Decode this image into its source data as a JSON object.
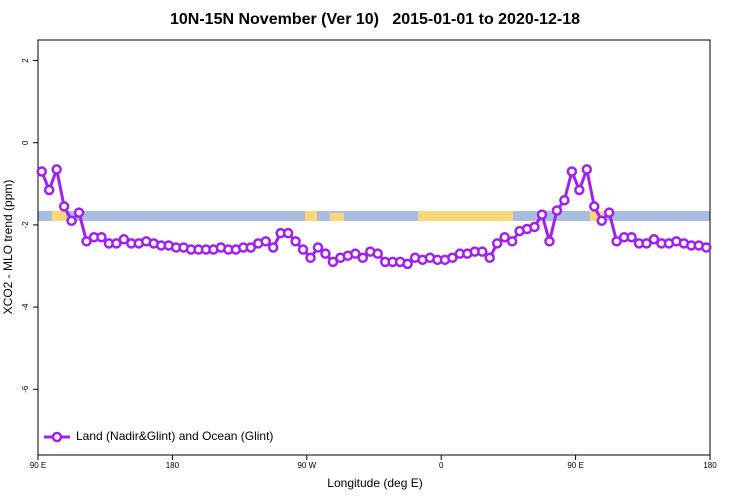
{
  "chart_data": {
    "type": "line",
    "title": "10N-15N November (Ver 10)   2015-01-01 to 2020-12-18",
    "xlabel": "Longitude (deg E)",
    "ylabel": "XCO2 - MLO trend (ppm)",
    "xlim": [
      90,
      540
    ],
    "ylim": [
      -7.6,
      2.5
    ],
    "xticks": [
      {
        "value": 90,
        "label": "90 E"
      },
      {
        "value": 180,
        "label": "180"
      },
      {
        "value": 270,
        "label": "90 W"
      },
      {
        "value": 360,
        "label": "0"
      },
      {
        "value": 450,
        "label": "90 E"
      },
      {
        "value": 540,
        "label": "180"
      }
    ],
    "yticks": [
      2,
      0,
      -2,
      -4,
      -6
    ],
    "legend": "bottomleft",
    "x": [
      92.5,
      97.5,
      102.5,
      107.5,
      112.5,
      117.5,
      122.5,
      127.5,
      132.5,
      137.5,
      142.5,
      147.5,
      152.5,
      157.5,
      162.5,
      167.5,
      172.5,
      177.5,
      182.5,
      187.5,
      192.5,
      197.5,
      202.5,
      207.5,
      212.5,
      217.5,
      222.5,
      227.5,
      232.5,
      237.5,
      242.5,
      247.5,
      252.5,
      257.5,
      262.5,
      267.5,
      272.5,
      277.5,
      282.5,
      287.5,
      292.5,
      297.5,
      302.5,
      307.5,
      312.5,
      317.5,
      322.5,
      327.5,
      332.5,
      337.5,
      342.5,
      347.5,
      352.5,
      357.5,
      362.5,
      367.5,
      372.5,
      377.5,
      382.5,
      387.5,
      392.5,
      397.5,
      402.5,
      407.5,
      412.5,
      417.5,
      422.5,
      427.5,
      432.5,
      437.5,
      442.5,
      447.5,
      452.5,
      457.5,
      462.5,
      467.5,
      472.5,
      477.5,
      482.5,
      487.5,
      492.5,
      497.5,
      502.5,
      507.5,
      512.5,
      517.5,
      522.5,
      527.5,
      532.5,
      537.5
    ],
    "series": [
      {
        "name": "Land (Nadir&Glint) and Ocean (Glint)",
        "color": "#a020f0",
        "values": [
          -0.7,
          -1.15,
          -0.65,
          -1.55,
          -1.9,
          -1.7,
          -2.4,
          -2.3,
          -2.3,
          -2.45,
          -2.45,
          -2.35,
          -2.45,
          -2.45,
          -2.4,
          -2.45,
          -2.5,
          -2.5,
          -2.55,
          -2.55,
          -2.6,
          -2.6,
          -2.6,
          -2.6,
          -2.55,
          -2.6,
          -2.6,
          -2.55,
          -2.55,
          -2.45,
          -2.4,
          -2.55,
          -2.2,
          -2.2,
          -2.4,
          -2.6,
          -2.8,
          -2.55,
          -2.7,
          -2.9,
          -2.8,
          -2.75,
          -2.7,
          -2.8,
          -2.65,
          -2.7,
          -2.9,
          -2.9,
          -2.9,
          -2.95,
          -2.8,
          -2.85,
          -2.8,
          -2.85,
          -2.85,
          -2.8,
          -2.7,
          -2.7,
          -2.65,
          -2.65,
          -2.8,
          -2.45,
          -2.3,
          -2.4,
          -2.15,
          -2.1,
          -2.05,
          -1.75,
          -2.4,
          -1.65,
          -1.4,
          -0.7,
          -1.15,
          -0.65,
          -1.55,
          -1.9,
          -1.7,
          -2.4,
          -2.3,
          -2.3,
          -2.45,
          -2.45,
          -2.35,
          -2.45,
          -2.45,
          -2.4,
          -2.45,
          -2.5,
          -2.5,
          -2.55
        ]
      }
    ]
  }
}
